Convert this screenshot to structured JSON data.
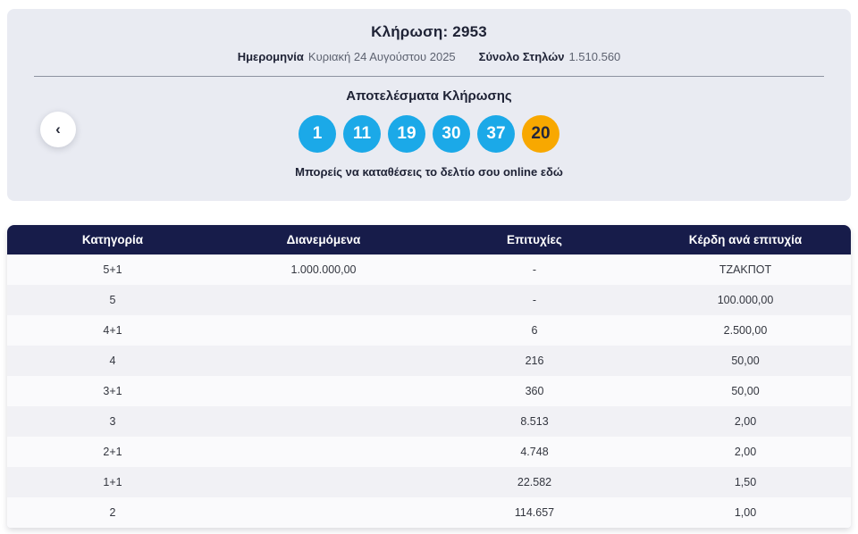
{
  "colors": {
    "card_background": "#e9ebf2",
    "ball_blue": "#1ba9e8",
    "ball_orange": "#f8a800",
    "table_header_navy": "#171c4a"
  },
  "draw_card": {
    "title": "Κλήρωση: 2953",
    "date_label": "Ημερομηνία",
    "date_value": "Κυριακή 24 Αυγούστου 2025",
    "total_columns_label": "Σύνολο Στηλών",
    "total_columns_value": "1.510.560",
    "results_title": "Αποτελέσματα Κλήρωσης",
    "winning_numbers": [
      "1",
      "11",
      "19",
      "30",
      "37"
    ],
    "bonus_number": "20",
    "online_link_text": "Μπορείς να καταθέσεις το δελτίο σου online εδώ",
    "prev_icon": "‹"
  },
  "prize_table": {
    "headers": [
      "Κατηγορία",
      "Διανεμόμενα",
      "Επιτυχίες",
      "Κέρδη ανά επιτυχία"
    ],
    "rows": [
      [
        "5+1",
        "1.000.000,00",
        "-",
        "ΤΖΑΚΠΟΤ"
      ],
      [
        "5",
        "",
        "-",
        "100.000,00"
      ],
      [
        "4+1",
        "",
        "6",
        "2.500,00"
      ],
      [
        "4",
        "",
        "216",
        "50,00"
      ],
      [
        "3+1",
        "",
        "360",
        "50,00"
      ],
      [
        "3",
        "",
        "8.513",
        "2,00"
      ],
      [
        "2+1",
        "",
        "4.748",
        "2,00"
      ],
      [
        "1+1",
        "",
        "22.582",
        "1,50"
      ],
      [
        "2",
        "",
        "114.657",
        "1,00"
      ]
    ]
  }
}
